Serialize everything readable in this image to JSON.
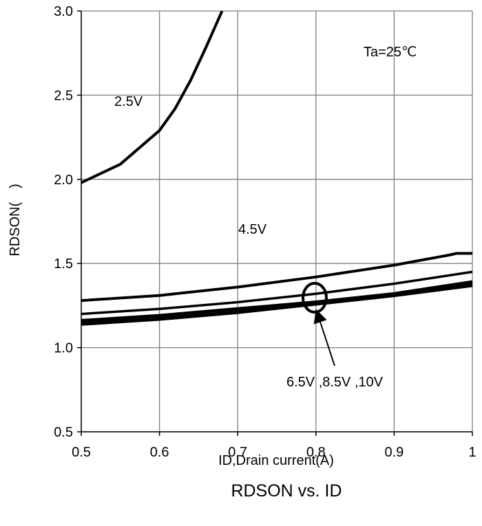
{
  "chart_data": {
    "type": "line",
    "title": "RDSON vs. ID",
    "xlabel": "ID,Drain current(A)",
    "ylabel": "RDSON(　)",
    "xlim": [
      0.5,
      1.0
    ],
    "ylim": [
      0.5,
      3.0
    ],
    "xticks": [
      0.5,
      0.6,
      0.7,
      0.8,
      0.9,
      1.0
    ],
    "xtick_labels": [
      "0.5",
      "0.6",
      "0.7",
      "0.8",
      "0.9",
      "1"
    ],
    "yticks": [
      0.5,
      1.0,
      1.5,
      2.0,
      2.5,
      3.0
    ],
    "ytick_labels": [
      "0.5",
      "1.0",
      "1.5",
      "2.0",
      "2.5",
      "3.0"
    ],
    "grid": true,
    "series": [
      {
        "name": "2.5V",
        "x": [
          0.5,
          0.55,
          0.6,
          0.62,
          0.64,
          0.66,
          0.68
        ],
        "y": [
          1.98,
          2.09,
          2.29,
          2.42,
          2.59,
          2.79,
          3.0
        ]
      },
      {
        "name": "4.5V",
        "x": [
          0.5,
          0.6,
          0.7,
          0.8,
          0.9,
          0.97,
          0.98,
          1.0
        ],
        "y": [
          1.28,
          1.31,
          1.36,
          1.42,
          1.49,
          1.55,
          1.56,
          1.56
        ]
      },
      {
        "name": "6.5V",
        "x": [
          0.5,
          0.6,
          0.7,
          0.8,
          0.9,
          1.0
        ],
        "y": [
          1.2,
          1.23,
          1.27,
          1.32,
          1.38,
          1.45
        ]
      },
      {
        "name": "8.5V",
        "x": [
          0.5,
          0.6,
          0.7,
          0.8,
          0.9,
          1.0
        ],
        "y": [
          1.16,
          1.19,
          1.23,
          1.27,
          1.32,
          1.39
        ]
      },
      {
        "name": "10V",
        "x": [
          0.5,
          0.6,
          0.7,
          0.8,
          0.9,
          1.0
        ],
        "y": [
          1.14,
          1.17,
          1.21,
          1.26,
          1.31,
          1.37
        ]
      }
    ],
    "annotations": {
      "ta": "Ta=25℃",
      "label_25": "2.5V",
      "label_45": "4.5V",
      "label_group": "6.5V ,8.5V ,10V"
    }
  }
}
